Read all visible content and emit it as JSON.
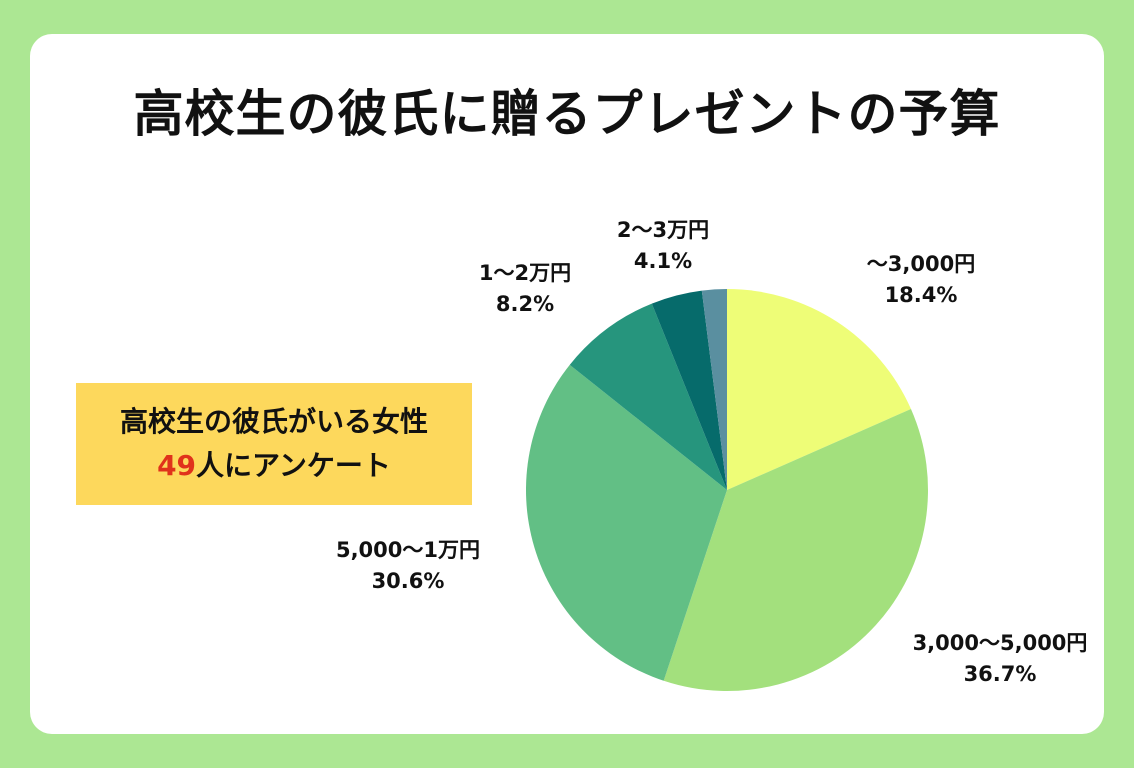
{
  "page": {
    "title": "高校生の彼氏に贈るプレゼントの予算",
    "survey": {
      "line1": "高校生の彼氏がいる女性",
      "count": "49",
      "count_suffix": "人にアンケート"
    }
  },
  "colors": {
    "background": "#ace793",
    "card": "#ffffff",
    "box": "#fdd85c",
    "count_text": "#e0321b"
  },
  "chart_data": {
    "type": "pie",
    "title": "高校生の彼氏に贈るプレゼントの予算",
    "slices": [
      {
        "label": "〜3,000円",
        "value": 18.4,
        "value_label": "18.4%",
        "color": "#eefd77"
      },
      {
        "label": "3,000〜5,000円",
        "value": 36.7,
        "value_label": "36.7%",
        "color": "#a3e07d"
      },
      {
        "label": "5,000〜1万円",
        "value": 30.6,
        "value_label": "30.6%",
        "color": "#62bf85"
      },
      {
        "label": "1〜2万円",
        "value": 8.2,
        "value_label": "8.2%",
        "color": "#26957d"
      },
      {
        "label": "2〜3万円",
        "value": 4.1,
        "value_label": "4.1%",
        "color": "#066b6b"
      },
      {
        "label": "",
        "value": 2.0,
        "value_label": "",
        "color": "#5a8fa0"
      }
    ]
  }
}
